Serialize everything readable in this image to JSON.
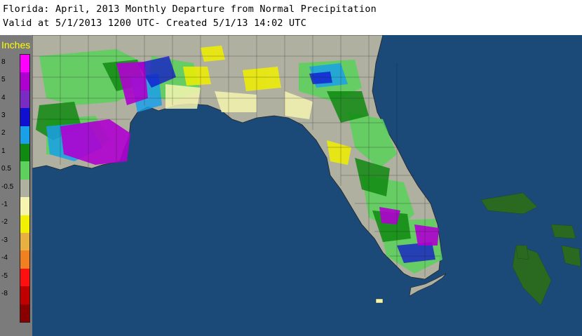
{
  "header": {
    "line1": "Florida: April, 2013 Monthly Departure from Normal Precipitation",
    "line2": "Valid at 5/1/2013 1200 UTC- Created 5/1/13 14:02 UTC"
  },
  "legend": {
    "title": "Inches",
    "entries": [
      {
        "label": "8",
        "color": "#ff00ff"
      },
      {
        "label": "5",
        "color": "#b000d0"
      },
      {
        "label": "4",
        "color": "#7a2bc4"
      },
      {
        "label": "3",
        "color": "#1010d0"
      },
      {
        "label": "2",
        "color": "#1aa0e8"
      },
      {
        "label": "1",
        "color": "#108a10"
      },
      {
        "label": "0.5",
        "color": "#5ed05e"
      },
      {
        "label": "-0.5",
        "color": "#b0b0a0"
      },
      {
        "label": "-1",
        "color": "#f5f5b0"
      },
      {
        "label": "-2",
        "color": "#f0f000"
      },
      {
        "label": "-3",
        "color": "#e8b040"
      },
      {
        "label": "-4",
        "color": "#f08020"
      },
      {
        "label": "-5",
        "color": "#ff1010"
      },
      {
        "label": "-8",
        "color": "#c00000"
      },
      {
        "label": "",
        "color": "#8a0000"
      }
    ]
  },
  "map": {
    "water_color": "#1b4a78",
    "land_base_color": "#b0b0a0"
  }
}
